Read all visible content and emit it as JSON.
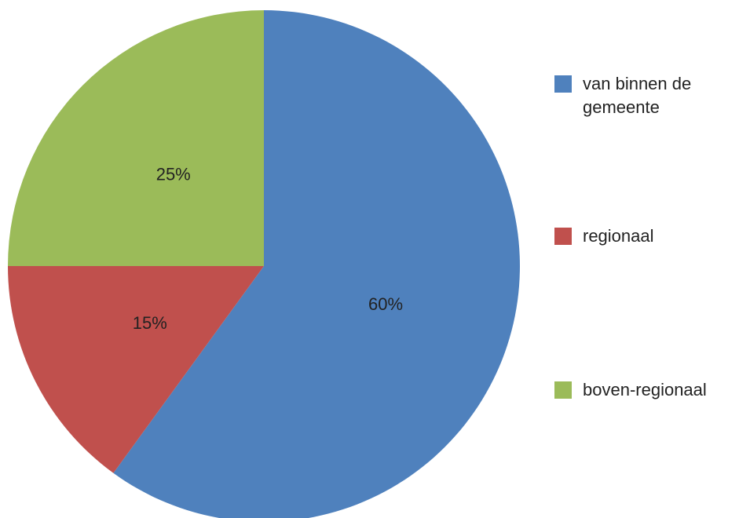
{
  "chart_data": {
    "type": "pie",
    "categories": [
      "van binnen de gemeente",
      "regionaal",
      "boven-regionaal"
    ],
    "values": [
      60,
      15,
      25
    ],
    "value_labels": [
      "60%",
      "15%",
      "25%"
    ],
    "colors": [
      "#4f81bd",
      "#c0504d",
      "#9bbb59"
    ],
    "legend": "right"
  }
}
